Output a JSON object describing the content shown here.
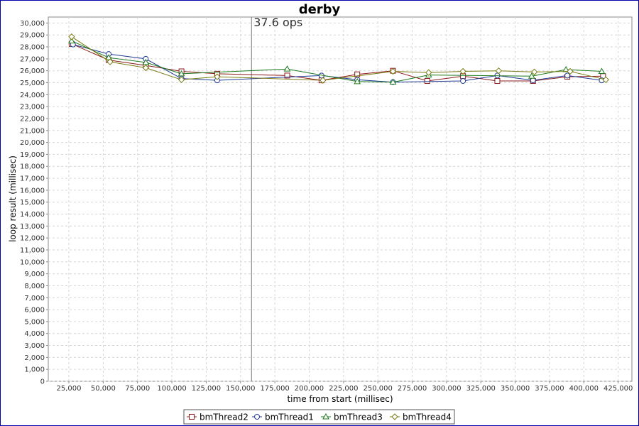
{
  "chart_data": {
    "type": "line",
    "title": "derby",
    "xlabel": "time from start (millisec)",
    "ylabel": "loop result (millisec)",
    "xlim": [
      10000,
      435000
    ],
    "ylim": [
      0,
      30500
    ],
    "x_ticks": [
      "25,000",
      "50,000",
      "75,000",
      "100,000",
      "125,000",
      "150,000",
      "175,000",
      "200,000",
      "225,000",
      "250,000",
      "275,000",
      "300,000",
      "325,000",
      "350,000",
      "375,000",
      "400,000",
      "425,000"
    ],
    "y_ticks": [
      "0",
      "1,000",
      "2,000",
      "3,000",
      "4,000",
      "5,000",
      "6,000",
      "7,000",
      "8,000",
      "9,000",
      "10,000",
      "11,000",
      "12,000",
      "13,000",
      "14,000",
      "15,000",
      "16,000",
      "17,000",
      "18,000",
      "19,000",
      "20,000",
      "21,000",
      "22,000",
      "23,000",
      "24,000",
      "25,000",
      "26,000",
      "27,000",
      "28,000",
      "29,000",
      "30,000"
    ],
    "grid": true,
    "legend_position": "bottom",
    "annotation": {
      "text": "37.6 ops",
      "x": 158000
    },
    "series": [
      {
        "name": "bmThread2",
        "color": "#8b1a1a",
        "marker": "square",
        "x": [
          27000,
          54000,
          81000,
          107000,
          133000,
          184000,
          209000,
          235000,
          261000,
          286000,
          312000,
          337000,
          363000,
          388000,
          414000
        ],
        "y": [
          28250,
          26900,
          26450,
          25950,
          25750,
          25600,
          25200,
          25700,
          26000,
          25150,
          25550,
          25150,
          25150,
          25500,
          25550
        ]
      },
      {
        "name": "bmThread1",
        "color": "#1f3a93",
        "marker": "circle",
        "x": [
          28000,
          54000,
          81000,
          107000,
          133000,
          209000,
          235000,
          261000,
          312000,
          337000,
          363000,
          388000,
          413000
        ],
        "y": [
          28200,
          27400,
          27000,
          25350,
          25200,
          25600,
          25250,
          25050,
          25150,
          25600,
          25200,
          25600,
          25200
        ]
      },
      {
        "name": "bmThread3",
        "color": "#1e7a1e",
        "marker": "triangle",
        "x": [
          27000,
          54000,
          81000,
          107000,
          184000,
          235000,
          261000,
          287000,
          362000,
          387000,
          413000
        ],
        "y": [
          28500,
          27100,
          26700,
          25750,
          26150,
          25100,
          25050,
          25650,
          25550,
          26100,
          25950
        ]
      },
      {
        "name": "bmThread4",
        "color": "#7a7a14",
        "marker": "diamond",
        "x": [
          27000,
          55000,
          81000,
          107000,
          133000,
          210000,
          261000,
          287000,
          312000,
          338000,
          364000,
          390000,
          416000
        ],
        "y": [
          28850,
          26750,
          26250,
          25250,
          25500,
          25200,
          25950,
          25850,
          25950,
          26000,
          25900,
          25950,
          25250
        ]
      }
    ]
  }
}
